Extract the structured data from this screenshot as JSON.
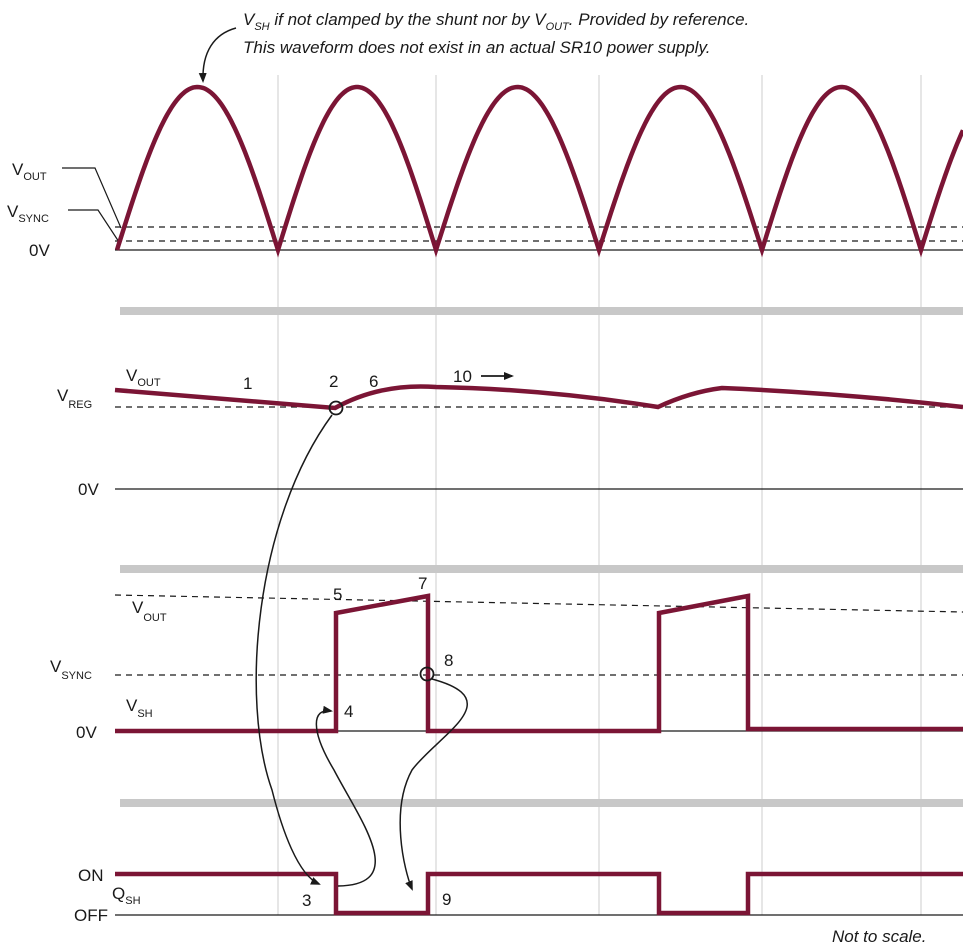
{
  "top_note": {
    "line1_main": "V",
    "line1_sub1": "SH",
    "line1_mid": " if not clamped by the shunt nor by V",
    "line1_sub2": "OUT",
    "line1_end": ". Provided by reference.",
    "line2": "This waveform does not exist in an actual SR10 power supply."
  },
  "panel1": {
    "vout": {
      "main": "V",
      "sub": "OUT"
    },
    "vsync": {
      "main": "V",
      "sub": "SYNC"
    },
    "zero": "0V"
  },
  "panel2": {
    "vout": {
      "main": "V",
      "sub": "OUT"
    },
    "vreg": {
      "main": "V",
      "sub": "REG"
    },
    "zero": "0V",
    "markers": {
      "m1": "1",
      "m2": "2",
      "m6": "6",
      "m10": "10"
    }
  },
  "panel3": {
    "vout": {
      "main": "V",
      "sub": "OUT"
    },
    "vsync": {
      "main": "V",
      "sub": "SYNC"
    },
    "vsh": {
      "main": "V",
      "sub": "SH"
    },
    "zero": "0V",
    "markers": {
      "m4": "4",
      "m5": "5",
      "m7": "7",
      "m8": "8"
    }
  },
  "panel4": {
    "on": "ON",
    "off": "OFF",
    "qsh": {
      "main": "Q",
      "sub": "SH"
    },
    "markers": {
      "m3": "3",
      "m9": "9"
    }
  },
  "footer": "Not to scale.",
  "colors": {
    "trace": "#7b1535",
    "grid": "#cccccc",
    "separator": "#c8c8c8",
    "ink": "#1a1a1a"
  }
}
